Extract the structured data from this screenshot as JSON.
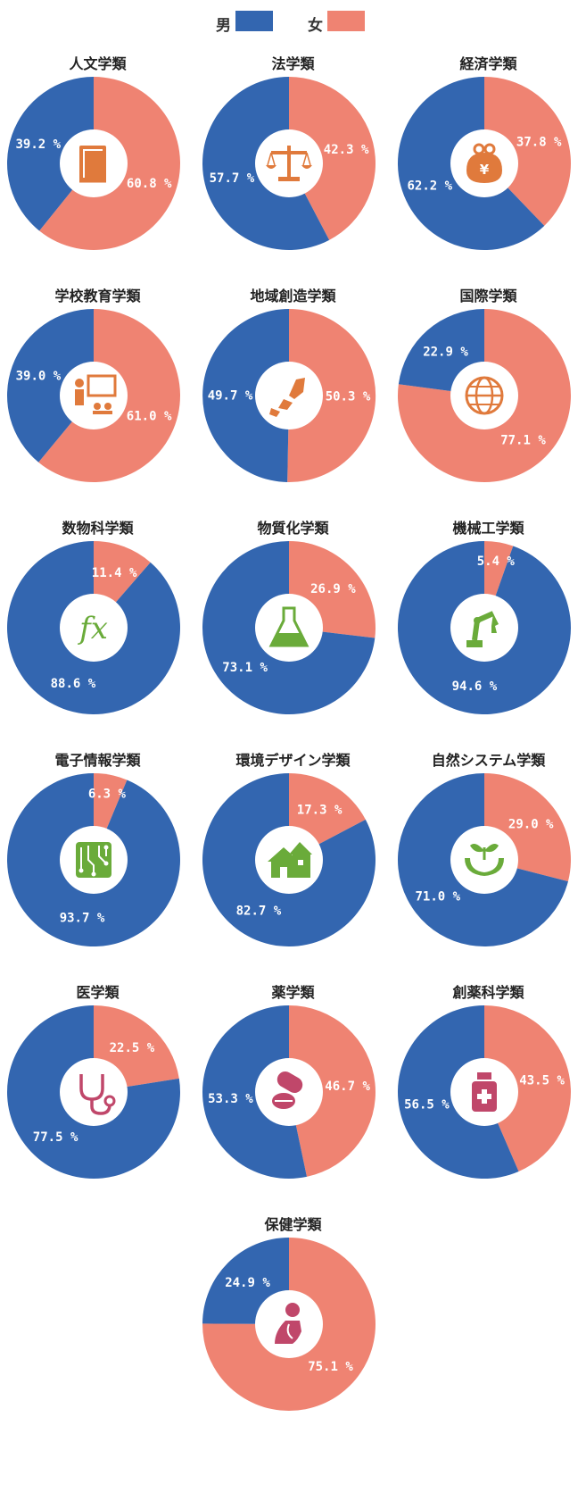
{
  "legend": {
    "male_label": "男",
    "female_label": "女",
    "male_color": "#3366b0",
    "female_color": "#ef8372"
  },
  "chart_data": [
    {
      "type": "pie",
      "title": "人文学類",
      "categories": [
        "男",
        "女"
      ],
      "values": [
        39.2,
        60.8
      ],
      "labels": [
        "39.2 %",
        "60.8 %"
      ],
      "icon": "book-icon",
      "icon_color": "#e07a3c"
    },
    {
      "type": "pie",
      "title": "法学類",
      "categories": [
        "男",
        "女"
      ],
      "values": [
        57.7,
        42.3
      ],
      "labels": [
        "57.7 %",
        "42.3 %"
      ],
      "icon": "scales-icon",
      "icon_color": "#e07a3c"
    },
    {
      "type": "pie",
      "title": "経済学類",
      "categories": [
        "男",
        "女"
      ],
      "values": [
        62.2,
        37.8
      ],
      "labels": [
        "62.2 %",
        "37.8 %"
      ],
      "icon": "yen-purse-icon",
      "icon_color": "#e07a3c"
    },
    {
      "type": "pie",
      "title": "学校教育学類",
      "categories": [
        "男",
        "女"
      ],
      "values": [
        39.0,
        61.0
      ],
      "labels": [
        "39.0 %",
        "61.0 %"
      ],
      "icon": "teacher-board-icon",
      "icon_color": "#e07a3c"
    },
    {
      "type": "pie",
      "title": "地域創造学類",
      "categories": [
        "男",
        "女"
      ],
      "values": [
        49.7,
        50.3
      ],
      "labels": [
        "49.7 %",
        "50.3 %"
      ],
      "icon": "japan-map-icon",
      "icon_color": "#e07a3c"
    },
    {
      "type": "pie",
      "title": "国際学類",
      "categories": [
        "男",
        "女"
      ],
      "values": [
        22.9,
        77.1
      ],
      "labels": [
        "22.9 %",
        "77.1 %"
      ],
      "icon": "globe-icon",
      "icon_color": "#e07a3c"
    },
    {
      "type": "pie",
      "title": "数物科学類",
      "categories": [
        "男",
        "女"
      ],
      "values": [
        88.6,
        11.4
      ],
      "labels": [
        "88.6 %",
        "11.4 %"
      ],
      "icon": "fx-icon",
      "icon_color": "#6aab3a"
    },
    {
      "type": "pie",
      "title": "物質化学類",
      "categories": [
        "男",
        "女"
      ],
      "values": [
        73.1,
        26.9
      ],
      "labels": [
        "73.1 %",
        "26.9 %"
      ],
      "icon": "flask-icon",
      "icon_color": "#6aab3a"
    },
    {
      "type": "pie",
      "title": "機械工学類",
      "categories": [
        "男",
        "女"
      ],
      "values": [
        94.6,
        5.4
      ],
      "labels": [
        "94.6 %",
        "5.4 %"
      ],
      "icon": "robot-arm-icon",
      "icon_color": "#6aab3a"
    },
    {
      "type": "pie",
      "title": "電子情報学類",
      "categories": [
        "男",
        "女"
      ],
      "values": [
        93.7,
        6.3
      ],
      "labels": [
        "93.7 %",
        "6.3 %"
      ],
      "icon": "circuit-board-icon",
      "icon_color": "#6aab3a"
    },
    {
      "type": "pie",
      "title": "環境デザイン学類",
      "categories": [
        "男",
        "女"
      ],
      "values": [
        82.7,
        17.3
      ],
      "labels": [
        "82.7 %",
        "17.3 %"
      ],
      "icon": "house-icon",
      "icon_color": "#6aab3a"
    },
    {
      "type": "pie",
      "title": "自然システム学類",
      "categories": [
        "男",
        "女"
      ],
      "values": [
        71.0,
        29.0
      ],
      "labels": [
        "71.0 %",
        "29.0 %"
      ],
      "icon": "sprout-hands-icon",
      "icon_color": "#6aab3a"
    },
    {
      "type": "pie",
      "title": "医学類",
      "categories": [
        "男",
        "女"
      ],
      "values": [
        77.5,
        22.5
      ],
      "labels": [
        "77.5 %",
        "22.5 %"
      ],
      "icon": "stethoscope-icon",
      "icon_color": "#c0476a"
    },
    {
      "type": "pie",
      "title": "薬学類",
      "categories": [
        "男",
        "女"
      ],
      "values": [
        53.3,
        46.7
      ],
      "labels": [
        "53.3 %",
        "46.7 %"
      ],
      "icon": "pills-icon",
      "icon_color": "#c0476a"
    },
    {
      "type": "pie",
      "title": "創薬科学類",
      "categories": [
        "男",
        "女"
      ],
      "values": [
        56.5,
        43.5
      ],
      "labels": [
        "56.5 %",
        "43.5 %"
      ],
      "icon": "medicine-bottle-icon",
      "icon_color": "#c0476a"
    },
    {
      "type": "pie",
      "title": "保健学類",
      "categories": [
        "男",
        "女"
      ],
      "values": [
        24.9,
        75.1
      ],
      "labels": [
        "24.9 %",
        "75.1 %"
      ],
      "icon": "human-body-icon",
      "icon_color": "#c0476a"
    }
  ]
}
